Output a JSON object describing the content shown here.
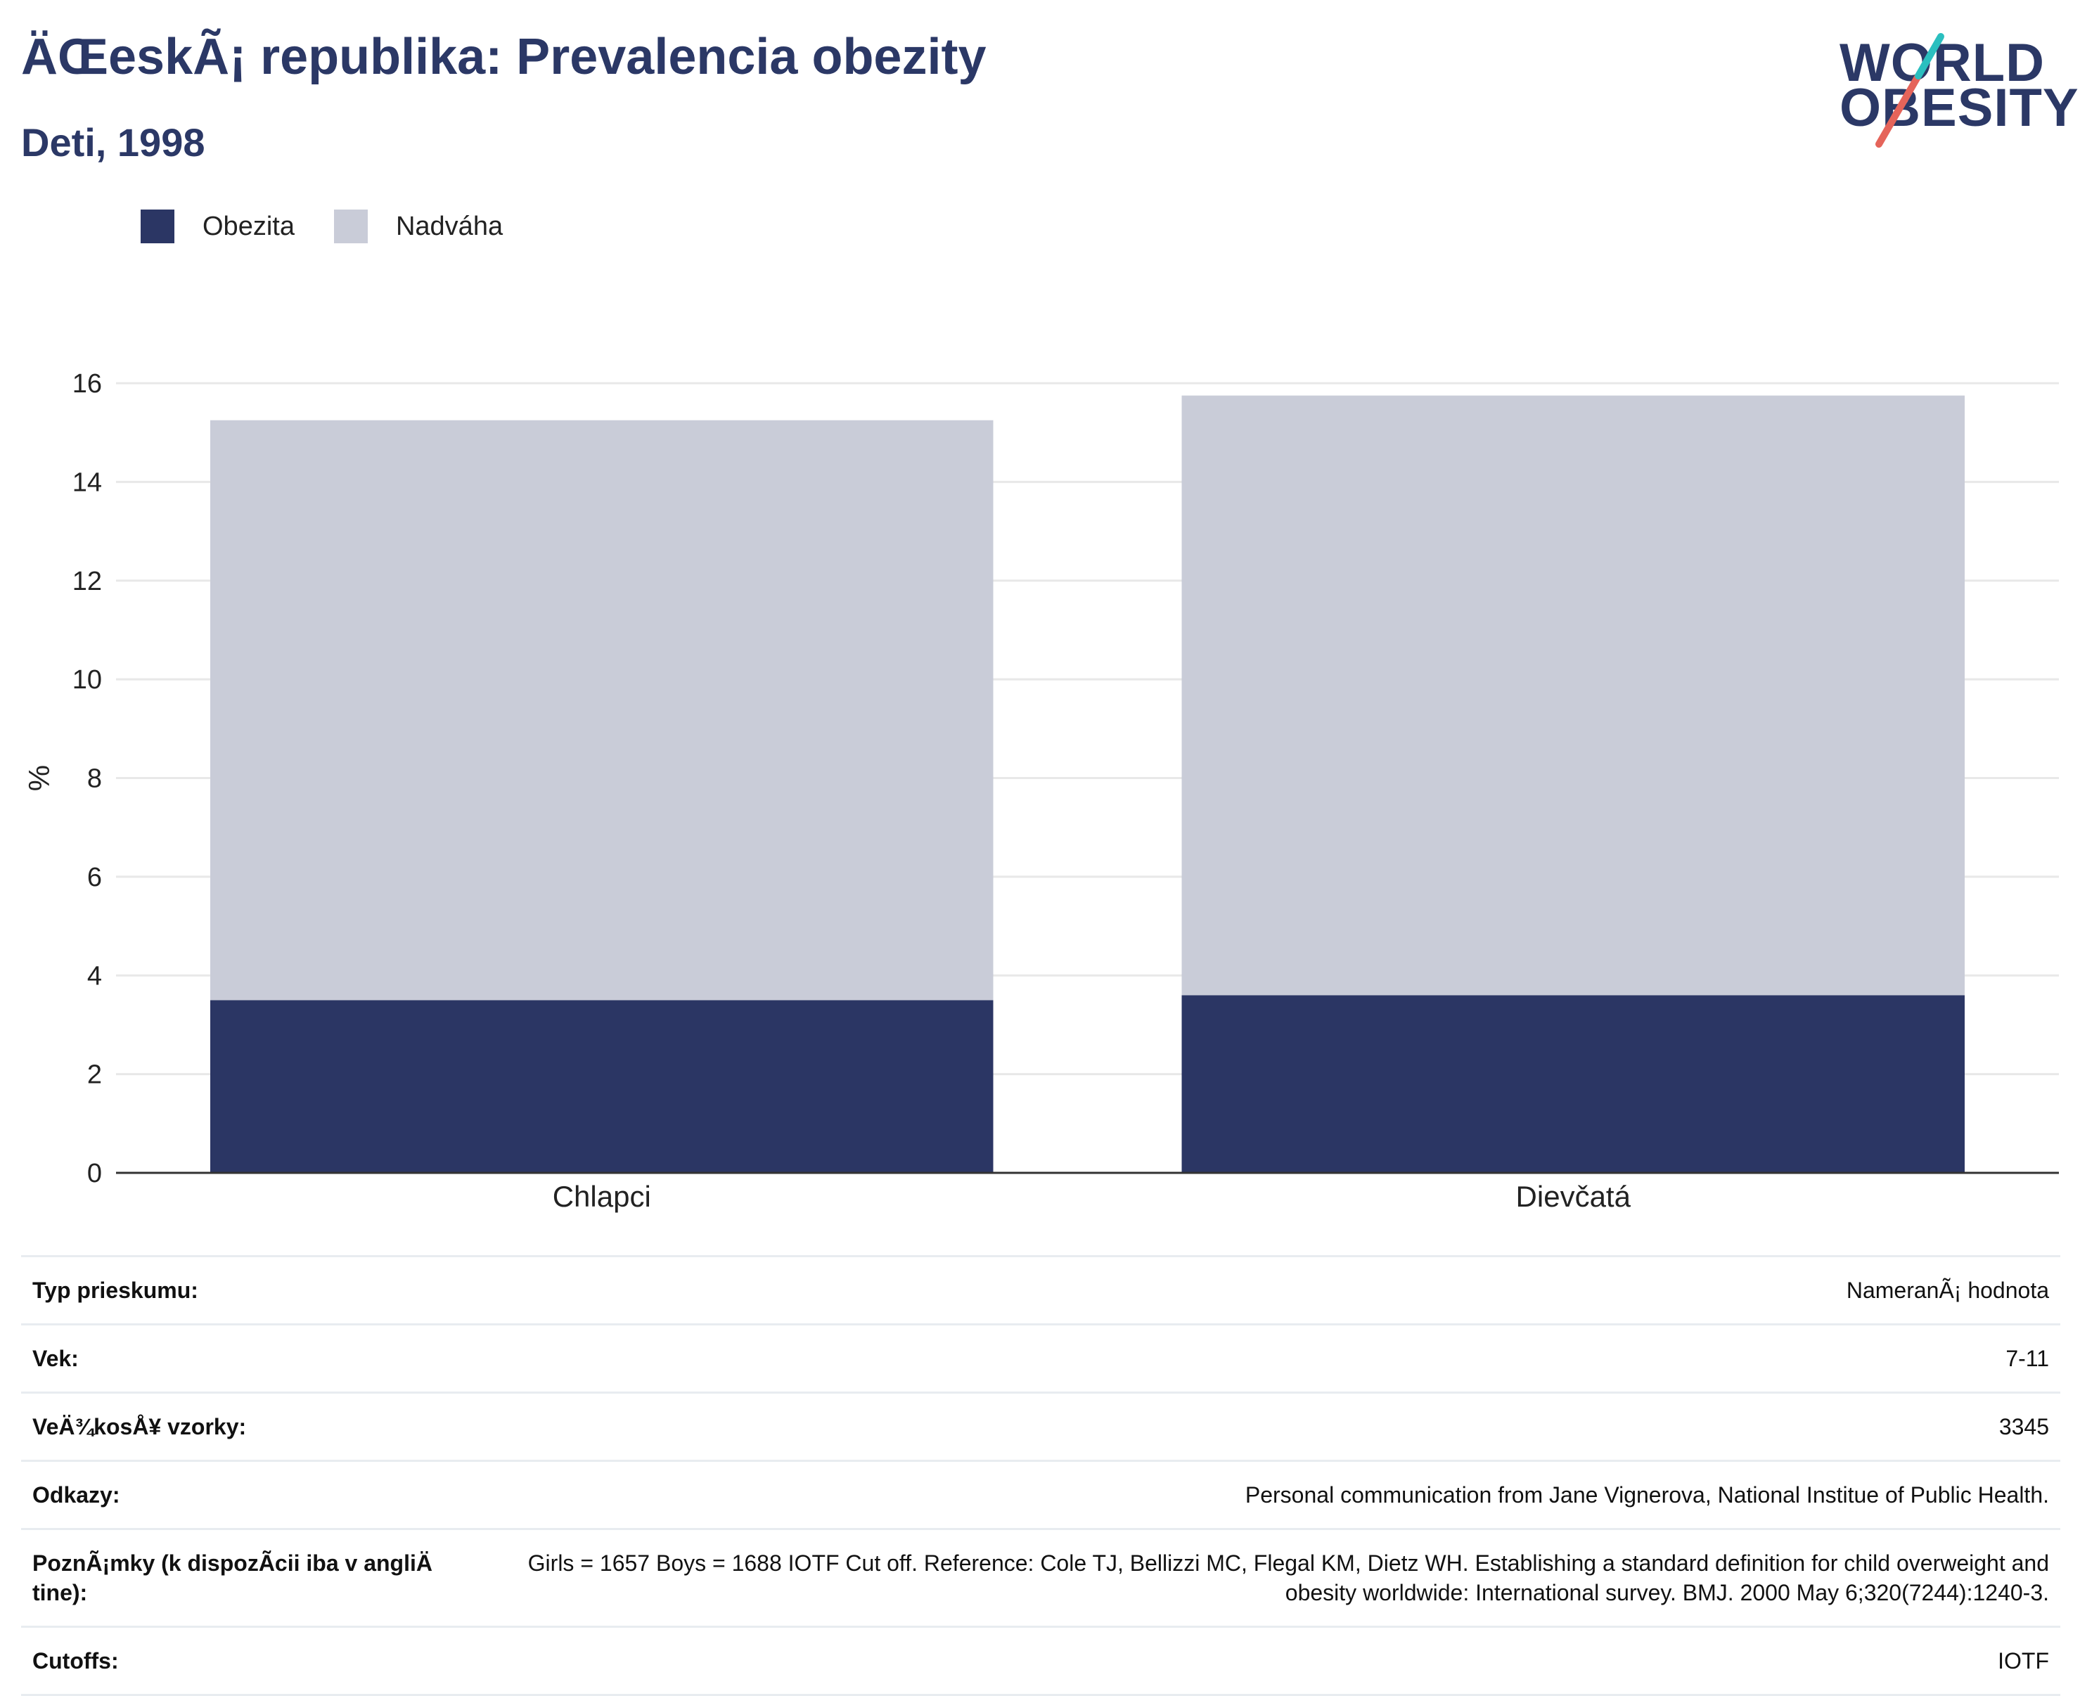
{
  "header": {
    "title": "ÄŒeskÃ¡ republika: Prevalencia obezity",
    "subtitle": "Deti, 1998"
  },
  "logo": {
    "line1": "WORLD",
    "line2": "OBESITY",
    "accent_colors": [
      "#2bbfbf",
      "#e5645a"
    ]
  },
  "legend": {
    "items": [
      {
        "label": "Obezita",
        "color": "#2b3664"
      },
      {
        "label": "Nadváha",
        "color": "#c9ccd8"
      }
    ]
  },
  "chart_data": {
    "type": "bar",
    "stacked": true,
    "categories": [
      "Chlapci",
      "Dievčatá"
    ],
    "series": [
      {
        "name": "Obezita",
        "values": [
          3.5,
          3.6
        ],
        "color": "#2b3664"
      },
      {
        "name": "Nadváha",
        "values": [
          11.75,
          12.15
        ],
        "color": "#c9ccd8"
      }
    ],
    "ylabel": "%",
    "ylim": [
      0,
      16
    ],
    "yticks": [
      0,
      2,
      4,
      6,
      8,
      10,
      12,
      14,
      16
    ],
    "grid": true,
    "legend_position": "top-left"
  },
  "info_table": [
    {
      "key": "Typ prieskumu:",
      "value": "NameranÃ¡ hodnota"
    },
    {
      "key": "Vek:",
      "value": "7-11"
    },
    {
      "key": "VeÄ¾kosÅ¥ vzorky:",
      "value": "3345"
    },
    {
      "key": "Odkazy:",
      "value": "Personal communication from Jane Vignerova, National Institue of Public Health."
    },
    {
      "key": "PoznÃ¡mky (k dispozÃ­cii iba v angliÄ tine):",
      "value": "Girls = 1657 Boys = 1688 IOTF Cut off. Reference: Cole TJ, Bellizzi MC, Flegal KM, Dietz WH. Establishing a standard definition for child overweight and obesity worldwide: International survey. BMJ. 2000 May 6;320(7244):1240-3."
    },
    {
      "key": "Cutoffs:",
      "value": "IOTF"
    }
  ]
}
